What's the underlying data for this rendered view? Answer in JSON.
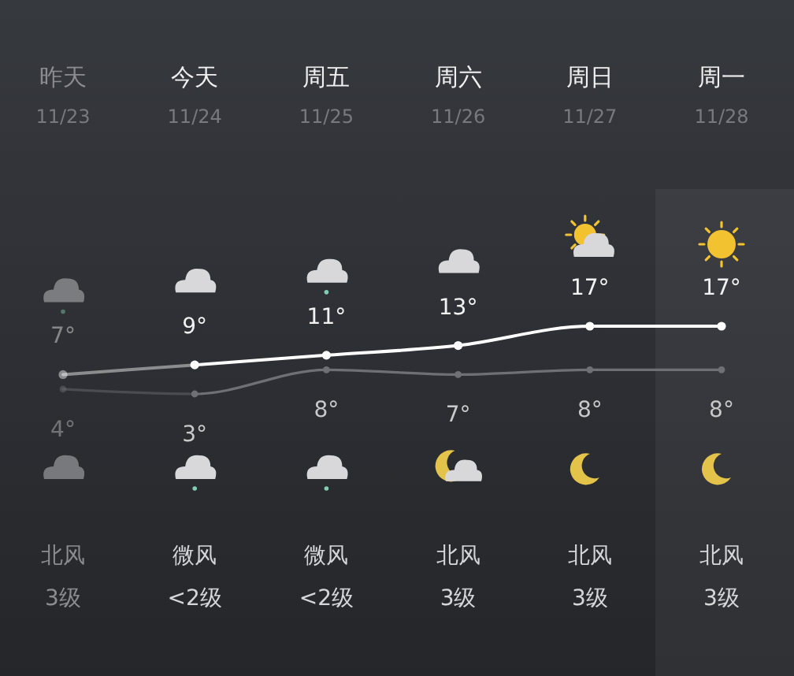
{
  "chart_data": {
    "type": "line",
    "categories": [
      "昨天",
      "今天",
      "周五",
      "周六",
      "周日",
      "周一"
    ],
    "series": [
      {
        "color": "#ffffff",
        "values": [
          7,
          9,
          11,
          13,
          17,
          17
        ],
        "value_labels": [
          "7°",
          "9°",
          "11°",
          "13°",
          "17°",
          "17°"
        ]
      },
      {
        "color": "#6e7075",
        "values": [
          4,
          3,
          8,
          7,
          8,
          8
        ],
        "value_labels": [
          "4°",
          "3°",
          "8°",
          "7°",
          "8°",
          "8°"
        ]
      }
    ],
    "annotations": [
      "11/23",
      "11/24",
      "11/25",
      "11/26",
      "11/27",
      "11/28",
      "北风",
      "微风",
      "微风",
      "北风",
      "北风",
      "北风",
      "3级",
      "<2级",
      "<2级",
      "3级",
      "3级",
      "3级"
    ],
    "bands": [
      {
        "axis": "x",
        "from": "周一",
        "to": "周一",
        "color": "#ffffff"
      }
    ],
    "marker": "circle",
    "line_style": "solid"
  }
}
